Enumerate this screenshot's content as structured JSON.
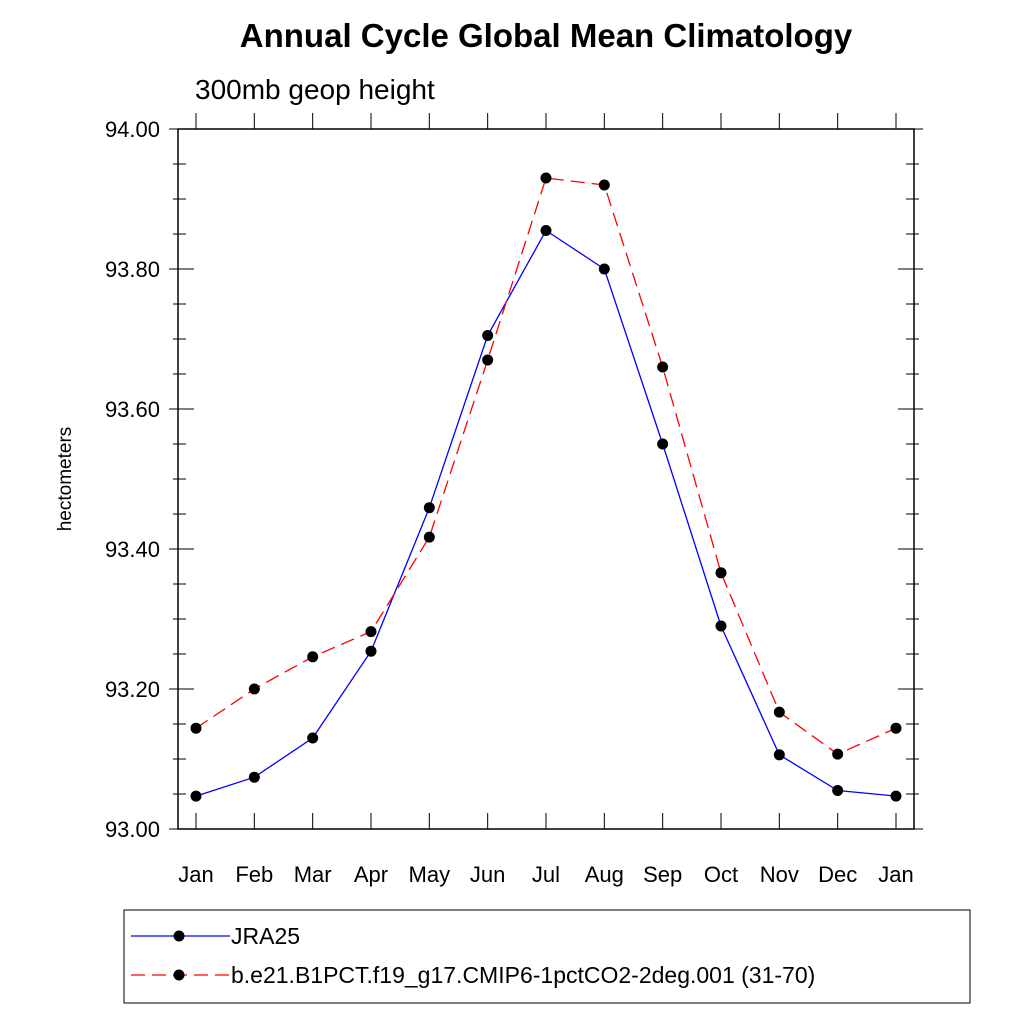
{
  "chart_data": {
    "type": "line",
    "title": "Annual Cycle Global Mean Climatology",
    "subtitle": "300mb geop height",
    "xlabel": "",
    "ylabel": "hectometers",
    "categories": [
      "Jan",
      "Feb",
      "Mar",
      "Apr",
      "May",
      "Jun",
      "Jul",
      "Aug",
      "Sep",
      "Oct",
      "Nov",
      "Dec",
      "Jan"
    ],
    "ylim": [
      93.0,
      94.0
    ],
    "yticks": [
      "93.00",
      "93.20",
      "93.40",
      "93.60",
      "93.80",
      "94.00"
    ],
    "grid": false,
    "legend_position": "bottom",
    "series": [
      {
        "name": "JRA25",
        "color": "#0000ff",
        "line_style": "solid",
        "marker": "filled-circle",
        "values": [
          93.047,
          93.074,
          93.13,
          93.254,
          93.459,
          93.705,
          93.855,
          93.8,
          93.55,
          93.29,
          93.106,
          93.055,
          93.047
        ]
      },
      {
        "name": "b.e21.B1PCT.f19_g17.CMIP6-1pctCO2-2deg.001 (31-70)",
        "color": "#ff0000",
        "line_style": "dashed",
        "marker": "filled-circle",
        "values": [
          93.144,
          93.2,
          93.246,
          93.282,
          93.417,
          93.67,
          93.93,
          93.92,
          93.66,
          93.366,
          93.167,
          93.107,
          93.144
        ]
      }
    ]
  }
}
